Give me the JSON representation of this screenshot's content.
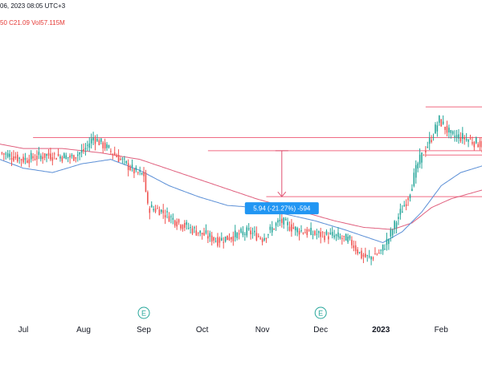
{
  "header": {
    "date_text": "06, 2023 08:05 UTC+3",
    "ohlc_text": "50  C21.09  Vol57.115M"
  },
  "measure": {
    "label": "5.94 (-21.27%) -594"
  },
  "events": [
    {
      "symbol": "E",
      "near": "Sep"
    },
    {
      "symbol": "E",
      "near": "Dec"
    }
  ],
  "colors": {
    "up": "#26a69a",
    "down": "#ef5350",
    "ma_fast": "#5b8fd6",
    "ma_slow": "#e0607e",
    "hline": "#f06b83",
    "measure_box": "#2196f3",
    "measure_line": "#e05070"
  },
  "chart_data": {
    "type": "candlestick",
    "x_ticks": [
      {
        "label": "Jul",
        "t": 0
      },
      {
        "label": "Aug",
        "t": 31
      },
      {
        "label": "Sep",
        "t": 62
      },
      {
        "label": "Oct",
        "t": 92
      },
      {
        "label": "Nov",
        "t": 123
      },
      {
        "label": "Dec",
        "t": 153
      },
      {
        "label": "2023",
        "t": 184,
        "bold": true
      },
      {
        "label": "Feb",
        "t": 215
      }
    ],
    "x_range": [
      -12,
      236
    ],
    "y_range": [
      0,
      100
    ],
    "price_keys": [
      [
        -12,
        65
      ],
      [
        0,
        62
      ],
      [
        12,
        64
      ],
      [
        25,
        63
      ],
      [
        31,
        66
      ],
      [
        36,
        72
      ],
      [
        42,
        68
      ],
      [
        50,
        62
      ],
      [
        58,
        56
      ],
      [
        62,
        55
      ],
      [
        64,
        40
      ],
      [
        70,
        39
      ],
      [
        80,
        33
      ],
      [
        92,
        28
      ],
      [
        100,
        25
      ],
      [
        108,
        27
      ],
      [
        116,
        29
      ],
      [
        123,
        26
      ],
      [
        132,
        34
      ],
      [
        140,
        30
      ],
      [
        150,
        28
      ],
      [
        160,
        27
      ],
      [
        168,
        25
      ],
      [
        174,
        18
      ],
      [
        178,
        17
      ],
      [
        184,
        20
      ],
      [
        188,
        26
      ],
      [
        192,
        34
      ],
      [
        198,
        45
      ],
      [
        203,
        60
      ],
      [
        210,
        72
      ],
      [
        214,
        80
      ],
      [
        220,
        73
      ],
      [
        226,
        72
      ],
      [
        232,
        70
      ],
      [
        236,
        69
      ]
    ],
    "ma_fast_keys": [
      [
        -12,
        62
      ],
      [
        0,
        58
      ],
      [
        15,
        56
      ],
      [
        30,
        60
      ],
      [
        45,
        62
      ],
      [
        60,
        57
      ],
      [
        75,
        50
      ],
      [
        90,
        45
      ],
      [
        105,
        41
      ],
      [
        120,
        40
      ],
      [
        135,
        37
      ],
      [
        150,
        34
      ],
      [
        165,
        30
      ],
      [
        175,
        27
      ],
      [
        185,
        24
      ],
      [
        195,
        29
      ],
      [
        205,
        38
      ],
      [
        215,
        50
      ],
      [
        225,
        56
      ],
      [
        236,
        59
      ]
    ],
    "ma_slow_keys": [
      [
        -12,
        69
      ],
      [
        0,
        67
      ],
      [
        20,
        67
      ],
      [
        40,
        65
      ],
      [
        60,
        62
      ],
      [
        80,
        56
      ],
      [
        100,
        50
      ],
      [
        120,
        44
      ],
      [
        140,
        39
      ],
      [
        160,
        34
      ],
      [
        175,
        31
      ],
      [
        190,
        30
      ],
      [
        200,
        33
      ],
      [
        210,
        40
      ],
      [
        220,
        44
      ],
      [
        236,
        48
      ]
    ],
    "h_levels": [
      {
        "value": 72,
        "from": 5
      },
      {
        "value": 66,
        "from": 95
      },
      {
        "value": 45,
        "from": 125
      },
      {
        "value": 86,
        "from": 207
      },
      {
        "value": 64,
        "from": 207
      }
    ],
    "measure": {
      "t": 133,
      "from_value": 66,
      "to_value": 45
    }
  }
}
